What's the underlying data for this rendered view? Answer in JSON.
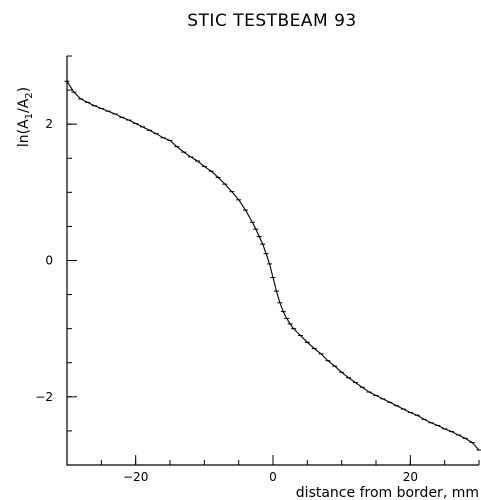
{
  "chart_data": {
    "type": "scatter",
    "title": "STIC TESTBEAM 93",
    "xlabel": "distance from border, mm",
    "ylabel_main": "ln(A",
    "ylabel_sub1": "1",
    "ylabel_mid": "/A",
    "ylabel_sub2": "2",
    "ylabel_end": ")",
    "xlim": [
      -30,
      30
    ],
    "ylim": [
      -3,
      3
    ],
    "x_major_ticks": [
      -20,
      0,
      20
    ],
    "x_major_tick_labels": [
      "−20",
      "0",
      "20"
    ],
    "y_major_ticks": [
      -2,
      0,
      2
    ],
    "y_major_tick_labels": [
      "−2",
      "0",
      "2"
    ],
    "x_minor_step": 5,
    "y_minor_step": 0.5,
    "grid": false,
    "series": [
      {
        "x": [
          -30,
          -29,
          -28,
          -27,
          -26,
          -25,
          -24,
          -23,
          -22,
          -21,
          -20,
          -19,
          -18,
          -17,
          -16,
          -15,
          -14,
          -13,
          -12,
          -11,
          -10,
          -9,
          -8,
          -7,
          -6,
          -5,
          -4,
          -3,
          -2.5,
          -2,
          -1.5,
          -1,
          -0.5,
          0,
          0.5,
          1,
          1.5,
          2,
          2.5,
          3,
          4,
          5,
          6,
          7,
          8,
          9,
          10,
          11,
          12,
          13,
          14,
          15,
          16,
          17,
          18,
          19,
          20,
          21,
          22,
          23,
          24,
          25,
          26,
          27,
          28,
          29,
          30
        ],
        "y": [
          2.63,
          2.47,
          2.37,
          2.32,
          2.27,
          2.23,
          2.19,
          2.15,
          2.1,
          2.06,
          2.01,
          1.96,
          1.91,
          1.86,
          1.8,
          1.76,
          1.67,
          1.59,
          1.52,
          1.46,
          1.38,
          1.31,
          1.22,
          1.12,
          1.01,
          0.89,
          0.74,
          0.56,
          0.46,
          0.35,
          0.24,
          0.1,
          -0.05,
          -0.25,
          -0.45,
          -0.62,
          -0.75,
          -0.85,
          -0.93,
          -1.0,
          -1.1,
          -1.2,
          -1.29,
          -1.37,
          -1.47,
          -1.55,
          -1.64,
          -1.72,
          -1.79,
          -1.86,
          -1.93,
          -1.98,
          -2.03,
          -2.08,
          -2.13,
          -2.18,
          -2.23,
          -2.27,
          -2.33,
          -2.38,
          -2.42,
          -2.47,
          -2.51,
          -2.56,
          -2.61,
          -2.67,
          -2.78
        ]
      }
    ]
  }
}
